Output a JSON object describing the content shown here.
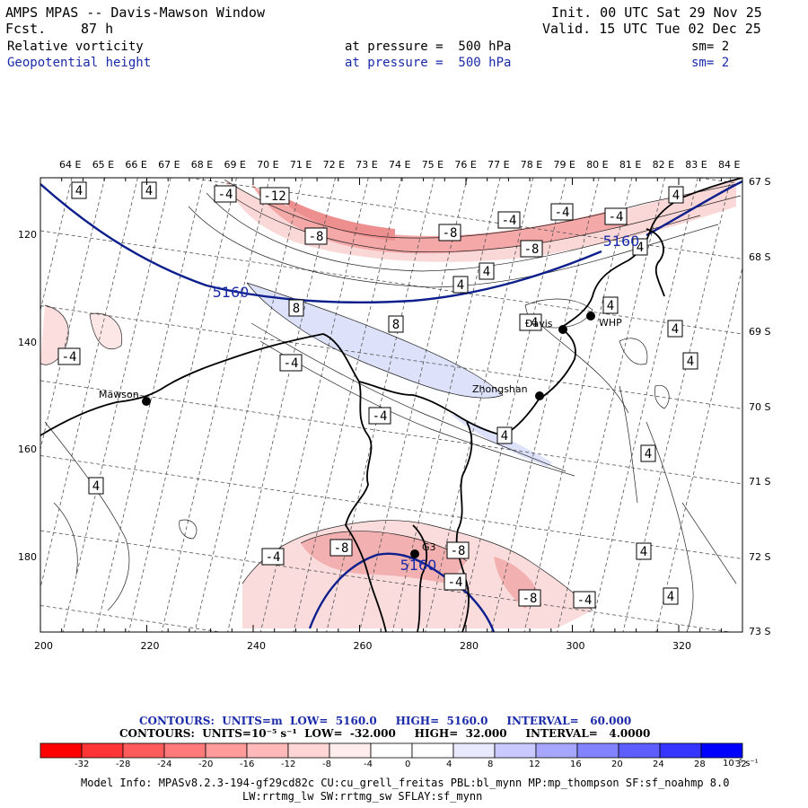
{
  "header": {
    "title": "AMPS MPAS -- Davis-Mawson Window",
    "fcst_label": "Fcst.",
    "fcst_value": "87 h",
    "init": "Init. 00 UTC Sat 29 Nov 25",
    "valid": "Valid. 15 UTC Tue 02 Dec 25"
  },
  "fields": [
    {
      "name": "Relative vorticity",
      "level": "at pressure =  500 hPa",
      "sm": "sm= 2"
    },
    {
      "name": "Geopotential height",
      "level": "at pressure =  500 hPa",
      "sm": "sm= 2"
    }
  ],
  "top_lon_labels": [
    "64 E",
    "65 E",
    "66 E",
    "67 E",
    "68 E",
    "69 E",
    "70 E",
    "71 E",
    "72 E",
    "73 E",
    "74 E",
    "75 E",
    "76 E",
    "77 E",
    "78 E",
    "79 E",
    "80 E",
    "81 E",
    "82 E",
    "83 E",
    "84 E"
  ],
  "right_lat_labels": [
    "67 S",
    "68 S",
    "69 S",
    "70 S",
    "71 S",
    "72 S",
    "73 S"
  ],
  "x_axis_labels": [
    "200",
    "220",
    "240",
    "260",
    "280",
    "300",
    "320"
  ],
  "y_axis_labels": [
    "120",
    "140",
    "160",
    "180"
  ],
  "stations": [
    {
      "name": "Mawson"
    },
    {
      "name": "Zhongshan"
    },
    {
      "name": "G3"
    },
    {
      "name": "Davis"
    },
    {
      "name": "WHP"
    }
  ],
  "contour_labels": [
    "4",
    "4",
    "-4",
    "-12",
    "-8",
    "-8",
    "-4",
    "-4",
    "-8",
    "-4",
    "4",
    "4",
    "8",
    "8",
    "-4",
    "-4",
    "-4",
    "4",
    "4",
    "4",
    "4",
    "4",
    "4",
    "4",
    "-8",
    "-4",
    "-8",
    "-4",
    "-8",
    "-4",
    "4",
    "4",
    "-4",
    "4"
  ],
  "height_labels": [
    "5160",
    "5160",
    "5160"
  ],
  "colors": {
    "negative_shade": "#f7b8b8",
    "negative_dark": "#ee8888",
    "positive_shade": "#dde2fa",
    "height_contour": "#0d1f8c"
  },
  "footer": {
    "contours1_label": "CONTOURS:  UNITS=m  LOW=  5160.0     HIGH=  5160.0     INTERVAL=   60.000",
    "contours2_label": "CONTOURS:  UNITS=10⁻⁵ s⁻¹  LOW=  -32.000     HIGH=  32.000     INTERVAL=   4.0000",
    "colorbar_ticks": [
      "-32",
      "-28",
      "-24",
      "-20",
      "-16",
      "-12",
      "-8",
      "-4",
      "0",
      "4",
      "8",
      "12",
      "16",
      "20",
      "24",
      "28",
      "32"
    ],
    "colorbar_unit": "10⁻⁵ s⁻¹",
    "colorbar_colors": [
      "#ff0000",
      "#ff3535",
      "#ff5b5b",
      "#ff7a7a",
      "#ff9b9b",
      "#ffb9b9",
      "#ffd5d5",
      "#ffecec",
      "#ffffff",
      "#ffffff",
      "#eaeaff",
      "#c9c9ff",
      "#a6a6ff",
      "#8383ff",
      "#5e5eff",
      "#3535ff",
      "#0000ff"
    ],
    "model_info": "Model Info: MPASv8.2.3-194-gf29cd82c CU:cu_grell_freitas PBL:bl_mynn MP:mp_thompson SF:sf_noahmp 8.0",
    "model_info2": "LW:rrtmg_lw SW:rrtmg_sw SFLAY:sf_mynn"
  }
}
